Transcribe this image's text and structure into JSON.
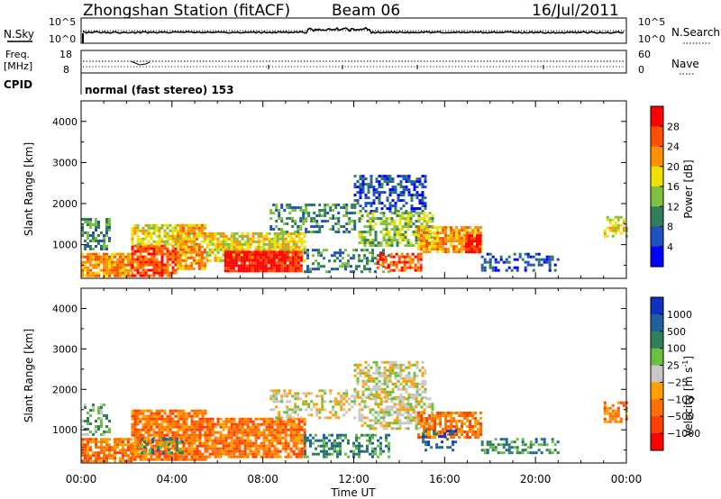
{
  "header": {
    "station": "Zhongshan Station (fitACF)",
    "beam": "Beam 06",
    "date": "16/Jul/2011"
  },
  "noise_panel": {
    "left_label": "N.Sky",
    "right_label": "N.Search",
    "left_ticks": [
      "10^5",
      "10^0"
    ],
    "right_ticks": [
      "10^5",
      "10^0"
    ]
  },
  "freq_panel": {
    "left_label_1": "Freq.",
    "left_label_2": "[MHz]",
    "left_ticks": [
      "18",
      "8"
    ],
    "right_label": "Nave",
    "right_ticks": [
      "60",
      "0"
    ],
    "cpid_label": "CPID",
    "mode_text": "normal (fast stereo) 153"
  },
  "chart_data": [
    {
      "type": "heatmap",
      "name": "power",
      "xlabel": "Time UT",
      "ylabel": "Slant Range [km]",
      "xlim": [
        0,
        24
      ],
      "ylim": [
        180,
        4500
      ],
      "x_ticks": [
        "00:00",
        "04:00",
        "08:00",
        "12:00",
        "16:00",
        "20:00",
        "00:00"
      ],
      "y_ticks": [
        1000,
        2000,
        3000,
        4000
      ],
      "colorbar": {
        "label": "Power [dB]",
        "ticks": [
          "4",
          "8",
          "12",
          "16",
          "20",
          "24",
          "28"
        ],
        "colors": [
          "#0000ff",
          "#1f50c0",
          "#2f7f5a",
          "#80c040",
          "#f0e000",
          "#ff9000",
          "#ff5000",
          "#ff0000"
        ]
      },
      "regions": [
        {
          "t0": 0.0,
          "t1": 2.2,
          "r0": 250,
          "r1": 800,
          "level": 5,
          "density": 0.85
        },
        {
          "t0": 0.0,
          "t1": 1.3,
          "r0": 900,
          "r1": 1650,
          "level": 2,
          "density": 0.5
        },
        {
          "t0": 2.2,
          "t1": 4.2,
          "r0": 250,
          "r1": 1000,
          "level": 6,
          "density": 0.85
        },
        {
          "t0": 2.2,
          "t1": 5.0,
          "r0": 1000,
          "r1": 1500,
          "level": 4,
          "density": 0.7
        },
        {
          "t0": 4.2,
          "t1": 5.5,
          "r0": 400,
          "r1": 1500,
          "level": 5,
          "density": 0.75
        },
        {
          "t0": 5.5,
          "t1": 9.8,
          "r0": 600,
          "r1": 1300,
          "level": 4,
          "density": 0.8
        },
        {
          "t0": 6.3,
          "t1": 9.7,
          "r0": 350,
          "r1": 850,
          "level": 7,
          "density": 0.95
        },
        {
          "t0": 8.3,
          "t1": 12.0,
          "r0": 1300,
          "r1": 2000,
          "level": 2,
          "density": 0.45
        },
        {
          "t0": 9.8,
          "t1": 13.5,
          "r0": 350,
          "r1": 900,
          "level": 2,
          "density": 0.4
        },
        {
          "t0": 12.0,
          "t1": 15.2,
          "r0": 1800,
          "r1": 2700,
          "level": 1,
          "density": 0.55
        },
        {
          "t0": 12.2,
          "t1": 15.5,
          "r0": 1000,
          "r1": 1800,
          "level": 3,
          "density": 0.6
        },
        {
          "t0": 14.8,
          "t1": 17.6,
          "r0": 800,
          "r1": 1450,
          "level": 5,
          "density": 0.8
        },
        {
          "t0": 16.9,
          "t1": 17.6,
          "r0": 800,
          "r1": 1250,
          "level": 7,
          "density": 0.9
        },
        {
          "t0": 13.0,
          "t1": 15.0,
          "r0": 400,
          "r1": 800,
          "level": 6,
          "density": 0.6
        },
        {
          "t0": 17.6,
          "t1": 21.0,
          "r0": 400,
          "r1": 800,
          "level": 1,
          "density": 0.45
        },
        {
          "t0": 23.0,
          "t1": 24.0,
          "r0": 1200,
          "r1": 1700,
          "level": 4,
          "density": 0.5
        }
      ]
    },
    {
      "type": "heatmap",
      "name": "velocity",
      "xlabel": "Time UT",
      "ylabel": "Slant Range [km]",
      "xlim": [
        0,
        24
      ],
      "ylim": [
        180,
        4500
      ],
      "x_ticks": [
        "00:00",
        "04:00",
        "08:00",
        "12:00",
        "16:00",
        "20:00",
        "00:00"
      ],
      "y_ticks": [
        1000,
        2000,
        3000,
        4000
      ],
      "colorbar": {
        "label": "Velocity [m s",
        "label_exp": "-1",
        "ticks": [
          "1000",
          "500",
          "100",
          "25",
          "−25",
          "−100",
          "−500",
          "−1000"
        ],
        "colors": [
          "#1030c0",
          "#2060a0",
          "#2f7f5a",
          "#6cc040",
          "#c8c8c8",
          "#ffa000",
          "#ff7000",
          "#ff4000",
          "#ff0000"
        ]
      },
      "regions": [
        {
          "t0": 0.0,
          "t1": 2.2,
          "r0": 250,
          "r1": 800,
          "level": 6,
          "density": 0.85
        },
        {
          "t0": 0.0,
          "t1": 1.3,
          "r0": 900,
          "r1": 1650,
          "level": 3,
          "density": 0.4
        },
        {
          "t0": 2.2,
          "t1": 5.5,
          "r0": 250,
          "r1": 1500,
          "level": 6,
          "density": 0.85
        },
        {
          "t0": 5.5,
          "t1": 9.8,
          "r0": 350,
          "r1": 1300,
          "level": 6,
          "density": 0.85
        },
        {
          "t0": 2.5,
          "t1": 4.5,
          "r0": 400,
          "r1": 800,
          "level": 2,
          "density": 0.35
        },
        {
          "t0": 8.3,
          "t1": 12.0,
          "r0": 1300,
          "r1": 2000,
          "level": 4,
          "density": 0.45
        },
        {
          "t0": 9.8,
          "t1": 13.5,
          "r0": 350,
          "r1": 900,
          "level": 2,
          "density": 0.45
        },
        {
          "t0": 12.0,
          "t1": 15.2,
          "r0": 1800,
          "r1": 2700,
          "level": 4,
          "density": 0.6
        },
        {
          "t0": 12.2,
          "t1": 15.5,
          "r0": 1000,
          "r1": 1800,
          "level": 4,
          "density": 0.6
        },
        {
          "t0": 14.8,
          "t1": 17.6,
          "r0": 800,
          "r1": 1450,
          "level": 6,
          "density": 0.75
        },
        {
          "t0": 15.0,
          "t1": 16.5,
          "r0": 500,
          "r1": 1000,
          "level": 1,
          "density": 0.4
        },
        {
          "t0": 17.6,
          "t1": 21.0,
          "r0": 400,
          "r1": 800,
          "level": 2,
          "density": 0.45
        },
        {
          "t0": 23.0,
          "t1": 24.0,
          "r0": 1200,
          "r1": 1700,
          "level": 6,
          "density": 0.5
        }
      ]
    }
  ]
}
